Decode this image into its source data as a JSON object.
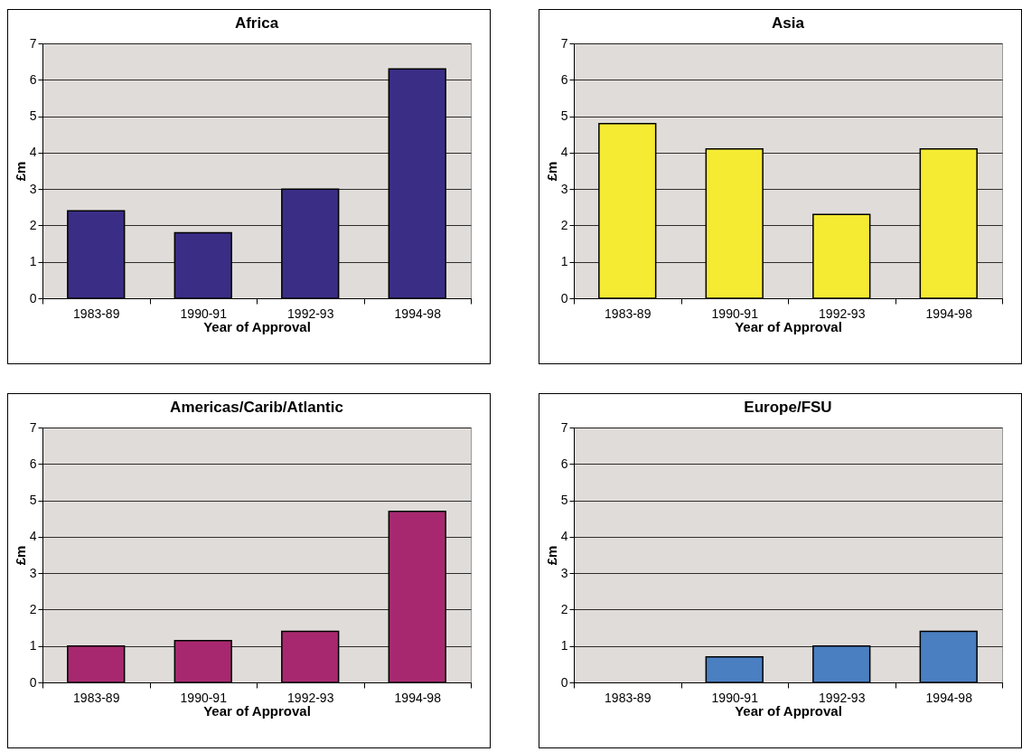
{
  "chart_data": [
    {
      "type": "bar",
      "title": "Africa",
      "xlabel": "Year of Approval",
      "ylabel": "£m",
      "categories": [
        "1983-89",
        "1990-91",
        "1992-93",
        "1994-98"
      ],
      "values": [
        2.4,
        1.8,
        3.0,
        6.3
      ],
      "color": "#3a2d86",
      "ylim": [
        0,
        7
      ],
      "yticks": [
        0,
        1,
        2,
        3,
        4,
        5,
        6,
        7
      ],
      "grid": "y"
    },
    {
      "type": "bar",
      "title": "Asia",
      "xlabel": "Year of Approval",
      "ylabel": "£m",
      "categories": [
        "1983-89",
        "1990-91",
        "1992-93",
        "1994-98"
      ],
      "values": [
        4.8,
        4.1,
        2.3,
        4.1
      ],
      "color": "#f5eb33",
      "ylim": [
        0,
        7
      ],
      "yticks": [
        0,
        1,
        2,
        3,
        4,
        5,
        6,
        7
      ],
      "grid": "y"
    },
    {
      "type": "bar",
      "title": "Americas/Carib/Atlantic",
      "xlabel": "Year of Approval",
      "ylabel": "£m",
      "categories": [
        "1983-89",
        "1990-91",
        "1992-93",
        "1994-98"
      ],
      "values": [
        1.0,
        1.15,
        1.4,
        4.7
      ],
      "color": "#a8286f",
      "ylim": [
        0,
        7
      ],
      "yticks": [
        0,
        1,
        2,
        3,
        4,
        5,
        6,
        7
      ],
      "grid": "y"
    },
    {
      "type": "bar",
      "title": "Europe/FSU",
      "xlabel": "Year of Approval",
      "ylabel": "£m",
      "categories": [
        "1983-89",
        "1990-91",
        "1992-93",
        "1994-98"
      ],
      "values": [
        null,
        0.7,
        1.0,
        1.4
      ],
      "color": "#4a7fc1",
      "ylim": [
        0,
        7
      ],
      "yticks": [
        0,
        1,
        2,
        3,
        4,
        5,
        6,
        7
      ],
      "grid": "y"
    }
  ]
}
